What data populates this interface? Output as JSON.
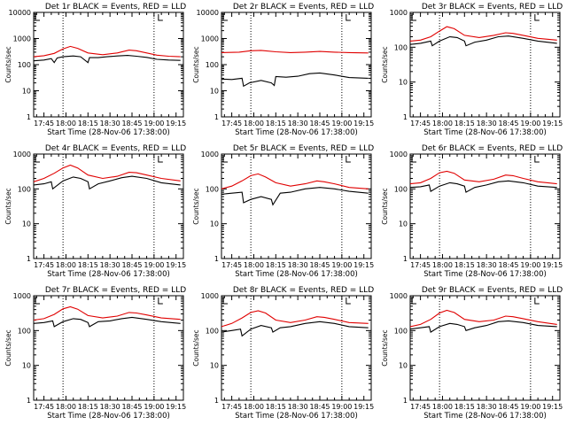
{
  "chart_data": [
    {
      "type": "line",
      "title": "Det 1r BLACK = Events, RED = LLD",
      "xlabel": "Start Time (28-Nov-06 17:38:00)",
      "ylabel": "Counts/sec",
      "yscale": "log",
      "ylim": [
        1,
        10000
      ],
      "yticks": [
        "1",
        "10",
        "100",
        "1000",
        "10000"
      ],
      "xticks": [
        "17:45",
        "18:00",
        "18:15",
        "18:30",
        "18:45",
        "19:00",
        "19:15"
      ],
      "vlines": [
        "17:58",
        "19:00"
      ],
      "markers": [
        "19:03"
      ],
      "series": [
        {
          "name": "BLACK",
          "color": "#000000",
          "x": [
            "17:38",
            "17:45",
            "17:50",
            "17:52",
            "17:54",
            "17:58",
            "18:05",
            "18:10",
            "18:15",
            "18:16",
            "18:22",
            "18:28",
            "18:35",
            "18:42",
            "18:48",
            "18:55",
            "19:02",
            "19:10",
            "19:18"
          ],
          "values": [
            140,
            150,
            170,
            120,
            180,
            200,
            215,
            200,
            120,
            185,
            185,
            200,
            215,
            225,
            210,
            190,
            160,
            150,
            145
          ]
        },
        {
          "name": "RED",
          "color": "#e00000",
          "x": [
            "17:38",
            "17:45",
            "17:52",
            "17:58",
            "18:03",
            "18:08",
            "18:15",
            "18:25",
            "18:35",
            "18:43",
            "18:48",
            "18:55",
            "19:02",
            "19:10",
            "19:18"
          ],
          "values": [
            200,
            220,
            270,
            400,
            500,
            420,
            280,
            240,
            280,
            360,
            340,
            280,
            230,
            210,
            200
          ]
        }
      ]
    },
    {
      "type": "line",
      "title": "Det 2r BLACK = Events, RED = LLD",
      "xlabel": "Start Time (28-Nov-06 17:38:00)",
      "ylabel": "Counts/sec",
      "yscale": "log",
      "ylim": [
        1,
        10000
      ],
      "yticks": [
        "1",
        "10",
        "100",
        "1000",
        "10000"
      ],
      "xticks": [
        "17:45",
        "18:00",
        "18:15",
        "18:30",
        "18:45",
        "19:00",
        "19:15"
      ],
      "vlines": [
        "17:58",
        "19:00"
      ],
      "markers": [
        "19:03"
      ],
      "series": [
        {
          "name": "BLACK",
          "color": "#000000",
          "x": [
            "17:38",
            "17:45",
            "17:52",
            "17:53",
            "17:57",
            "18:05",
            "18:12",
            "18:14",
            "18:15",
            "18:22",
            "18:30",
            "18:38",
            "18:45",
            "18:55",
            "19:05",
            "19:18"
          ],
          "values": [
            28,
            27,
            30,
            15,
            20,
            25,
            20,
            16,
            35,
            33,
            36,
            45,
            48,
            40,
            32,
            30
          ]
        },
        {
          "name": "RED",
          "color": "#e00000",
          "x": [
            "17:38",
            "17:50",
            "17:58",
            "18:05",
            "18:15",
            "18:25",
            "18:35",
            "18:45",
            "18:55",
            "19:05",
            "19:18"
          ],
          "values": [
            290,
            300,
            340,
            350,
            310,
            290,
            300,
            320,
            300,
            290,
            280
          ]
        }
      ]
    },
    {
      "type": "line",
      "title": "Det 3r BLACK = Events, RED = LLD",
      "xlabel": "Start Time (28-Nov-06 17:38:00)",
      "ylabel": "Counts/sec",
      "yscale": "log",
      "ylim": [
        1,
        1000
      ],
      "yticks": [
        "1",
        "10",
        "100",
        "1000"
      ],
      "xticks": [
        "17:45",
        "18:00",
        "18:15",
        "18:30",
        "18:45",
        "19:00",
        "19:15"
      ],
      "vlines": [
        "17:58",
        "19:00"
      ],
      "markers": [
        "19:03"
      ],
      "series": [
        {
          "name": "BLACK",
          "color": "#000000",
          "x": [
            "17:38",
            "17:45",
            "17:52",
            "17:53",
            "17:58",
            "18:05",
            "18:10",
            "18:15",
            "18:16",
            "18:22",
            "18:30",
            "18:38",
            "18:45",
            "18:55",
            "19:05",
            "19:18"
          ],
          "values": [
            120,
            130,
            150,
            110,
            150,
            200,
            190,
            150,
            110,
            140,
            160,
            200,
            210,
            180,
            150,
            130
          ]
        },
        {
          "name": "RED",
          "color": "#e00000",
          "x": [
            "17:38",
            "17:45",
            "17:52",
            "17:58",
            "18:03",
            "18:08",
            "18:15",
            "18:25",
            "18:35",
            "18:43",
            "18:48",
            "18:55",
            "19:05",
            "19:18"
          ],
          "values": [
            150,
            160,
            200,
            290,
            390,
            340,
            220,
            190,
            220,
            260,
            250,
            220,
            180,
            160
          ]
        }
      ]
    },
    {
      "type": "line",
      "title": "Det 4r BLACK = Events, RED = LLD",
      "xlabel": "Start Time (28-Nov-06 17:38:00)",
      "ylabel": "Counts/sec",
      "yscale": "log",
      "ylim": [
        1,
        1000
      ],
      "yticks": [
        "1",
        "10",
        "100",
        "1000"
      ],
      "xticks": [
        "17:45",
        "18:00",
        "18:15",
        "18:30",
        "18:45",
        "19:00",
        "19:15"
      ],
      "vlines": [
        "17:58",
        "19:00"
      ],
      "markers": [
        "19:03"
      ],
      "series": [
        {
          "name": "BLACK",
          "color": "#000000",
          "x": [
            "17:38",
            "17:45",
            "17:50",
            "17:51",
            "17:58",
            "18:05",
            "18:10",
            "18:15",
            "18:16",
            "18:22",
            "18:30",
            "18:38",
            "18:45",
            "18:55",
            "19:05",
            "19:18"
          ],
          "values": [
            130,
            140,
            160,
            100,
            170,
            220,
            200,
            160,
            100,
            140,
            170,
            210,
            230,
            200,
            150,
            130
          ]
        },
        {
          "name": "RED",
          "color": "#e00000",
          "x": [
            "17:38",
            "17:45",
            "17:52",
            "17:58",
            "18:03",
            "18:08",
            "18:15",
            "18:25",
            "18:35",
            "18:43",
            "18:48",
            "18:55",
            "19:05",
            "19:18"
          ],
          "values": [
            160,
            200,
            280,
            400,
            480,
            400,
            250,
            200,
            230,
            300,
            290,
            250,
            200,
            170
          ]
        }
      ]
    },
    {
      "type": "line",
      "title": "Det 5r BLACK = Events, RED = LLD",
      "xlabel": "Start Time (28-Nov-06 17:38:00)",
      "ylabel": "Counts/sec",
      "yscale": "log",
      "ylim": [
        1,
        1000
      ],
      "yticks": [
        "1",
        "10",
        "100",
        "1000"
      ],
      "xticks": [
        "17:45",
        "18:00",
        "18:15",
        "18:30",
        "18:45",
        "19:00",
        "19:15"
      ],
      "vlines": [
        "17:58",
        "19:00"
      ],
      "markers": [
        "19:03"
      ],
      "series": [
        {
          "name": "BLACK",
          "color": "#000000",
          "x": [
            "17:38",
            "17:45",
            "17:52",
            "17:53",
            "17:58",
            "18:05",
            "18:12",
            "18:13",
            "18:18",
            "18:25",
            "18:35",
            "18:45",
            "18:55",
            "19:05",
            "19:18"
          ],
          "values": [
            70,
            75,
            80,
            40,
            50,
            60,
            50,
            35,
            75,
            80,
            100,
            110,
            100,
            85,
            75
          ]
        },
        {
          "name": "RED",
          "color": "#e00000",
          "x": [
            "17:38",
            "17:45",
            "17:52",
            "17:58",
            "18:03",
            "18:08",
            "18:15",
            "18:25",
            "18:35",
            "18:43",
            "18:48",
            "18:55",
            "19:05",
            "19:18"
          ],
          "values": [
            100,
            120,
            170,
            240,
            270,
            220,
            150,
            120,
            140,
            170,
            160,
            140,
            110,
            100
          ]
        }
      ]
    },
    {
      "type": "line",
      "title": "Det 6r BLACK = Events, RED = LLD",
      "xlabel": "Start Time (28-Nov-06 17:38:00)",
      "ylabel": "Counts/sec",
      "yscale": "log",
      "ylim": [
        1,
        1000
      ],
      "yticks": [
        "1",
        "10",
        "100",
        "1000"
      ],
      "xticks": [
        "17:45",
        "18:00",
        "18:15",
        "18:30",
        "18:45",
        "19:00",
        "19:15"
      ],
      "vlines": [
        "17:58",
        "19:00"
      ],
      "markers": [
        "19:03"
      ],
      "series": [
        {
          "name": "BLACK",
          "color": "#000000",
          "x": [
            "17:38",
            "17:45",
            "17:51",
            "17:52",
            "17:58",
            "18:05",
            "18:10",
            "18:15",
            "18:16",
            "18:22",
            "18:30",
            "18:38",
            "18:45",
            "18:55",
            "19:05",
            "19:18"
          ],
          "values": [
            110,
            115,
            130,
            85,
            120,
            150,
            140,
            120,
            80,
            110,
            130,
            160,
            170,
            150,
            120,
            110
          ]
        },
        {
          "name": "RED",
          "color": "#e00000",
          "x": [
            "17:38",
            "17:45",
            "17:52",
            "17:58",
            "18:03",
            "18:08",
            "18:15",
            "18:25",
            "18:35",
            "18:43",
            "18:48",
            "18:55",
            "19:05",
            "19:18"
          ],
          "values": [
            140,
            150,
            200,
            290,
            320,
            280,
            180,
            160,
            190,
            250,
            240,
            200,
            160,
            140
          ]
        }
      ]
    },
    {
      "type": "line",
      "title": "Det 7r BLACK = Events, RED = LLD",
      "xlabel": "Start Time (28-Nov-06 17:38:00)",
      "ylabel": "Counts/sec",
      "yscale": "log",
      "ylim": [
        1,
        1000
      ],
      "yticks": [
        "1",
        "10",
        "100",
        "1000"
      ],
      "xticks": [
        "17:45",
        "18:00",
        "18:15",
        "18:30",
        "18:45",
        "19:00",
        "19:15"
      ],
      "vlines": [
        "17:58",
        "19:00"
      ],
      "markers": [
        "19:03"
      ],
      "series": [
        {
          "name": "BLACK",
          "color": "#000000",
          "x": [
            "17:38",
            "17:45",
            "17:51",
            "17:52",
            "17:58",
            "18:05",
            "18:10",
            "18:15",
            "18:16",
            "18:22",
            "18:30",
            "18:38",
            "18:45",
            "18:55",
            "19:05",
            "19:18"
          ],
          "values": [
            160,
            170,
            190,
            130,
            180,
            220,
            210,
            170,
            130,
            180,
            190,
            220,
            240,
            210,
            180,
            160
          ]
        },
        {
          "name": "RED",
          "color": "#e00000",
          "x": [
            "17:38",
            "17:45",
            "17:52",
            "17:58",
            "18:03",
            "18:08",
            "18:15",
            "18:25",
            "18:35",
            "18:43",
            "18:48",
            "18:55",
            "19:05",
            "19:18"
          ],
          "values": [
            200,
            220,
            290,
            420,
            480,
            410,
            270,
            230,
            260,
            330,
            320,
            280,
            230,
            210
          ]
        }
      ]
    },
    {
      "type": "line",
      "title": "Det 8r BLACK = Events, RED = LLD",
      "xlabel": "Start Time (28-Nov-06 17:38:00)",
      "ylabel": "Counts/sec",
      "yscale": "log",
      "ylim": [
        1,
        1000
      ],
      "yticks": [
        "1",
        "10",
        "100",
        "1000"
      ],
      "xticks": [
        "17:45",
        "18:00",
        "18:15",
        "18:30",
        "18:45",
        "19:00",
        "19:15"
      ],
      "vlines": [
        "17:58",
        "19:00"
      ],
      "markers": [
        "19:03"
      ],
      "series": [
        {
          "name": "BLACK",
          "color": "#000000",
          "x": [
            "17:38",
            "17:45",
            "17:51",
            "17:52",
            "17:58",
            "18:05",
            "18:12",
            "18:13",
            "18:18",
            "18:25",
            "18:35",
            "18:45",
            "18:55",
            "19:05",
            "19:18"
          ],
          "values": [
            90,
            100,
            110,
            70,
            110,
            140,
            120,
            90,
            120,
            130,
            160,
            180,
            160,
            130,
            120
          ]
        },
        {
          "name": "RED",
          "color": "#e00000",
          "x": [
            "17:38",
            "17:45",
            "17:52",
            "17:58",
            "18:03",
            "18:08",
            "18:15",
            "18:25",
            "18:35",
            "18:43",
            "18:48",
            "18:55",
            "19:05",
            "19:18"
          ],
          "values": [
            130,
            160,
            230,
            330,
            370,
            320,
            200,
            170,
            200,
            250,
            240,
            210,
            170,
            160
          ]
        }
      ]
    },
    {
      "type": "line",
      "title": "Det 9r BLACK = Events, RED = LLD",
      "xlabel": "Start Time (28-Nov-06 17:38:00)",
      "ylabel": "Counts/sec",
      "yscale": "log",
      "ylim": [
        1,
        1000
      ],
      "yticks": [
        "1",
        "10",
        "100",
        "1000"
      ],
      "xticks": [
        "17:45",
        "18:00",
        "18:15",
        "18:30",
        "18:45",
        "19:00",
        "19:15"
      ],
      "vlines": [
        "17:58",
        "19:00"
      ],
      "markers": [
        "19:03"
      ],
      "series": [
        {
          "name": "BLACK",
          "color": "#000000",
          "x": [
            "17:38",
            "17:45",
            "17:51",
            "17:52",
            "17:58",
            "18:05",
            "18:10",
            "18:15",
            "18:16",
            "18:22",
            "18:30",
            "18:38",
            "18:45",
            "18:55",
            "19:05",
            "19:18"
          ],
          "values": [
            110,
            120,
            130,
            90,
            130,
            160,
            150,
            130,
            100,
            120,
            140,
            180,
            190,
            170,
            140,
            130
          ]
        },
        {
          "name": "RED",
          "color": "#e00000",
          "x": [
            "17:38",
            "17:45",
            "17:52",
            "17:58",
            "18:03",
            "18:08",
            "18:15",
            "18:25",
            "18:35",
            "18:43",
            "18:48",
            "18:55",
            "19:05",
            "19:18"
          ],
          "values": [
            130,
            150,
            210,
            320,
            380,
            330,
            210,
            180,
            200,
            260,
            250,
            220,
            180,
            150
          ]
        }
      ]
    }
  ]
}
